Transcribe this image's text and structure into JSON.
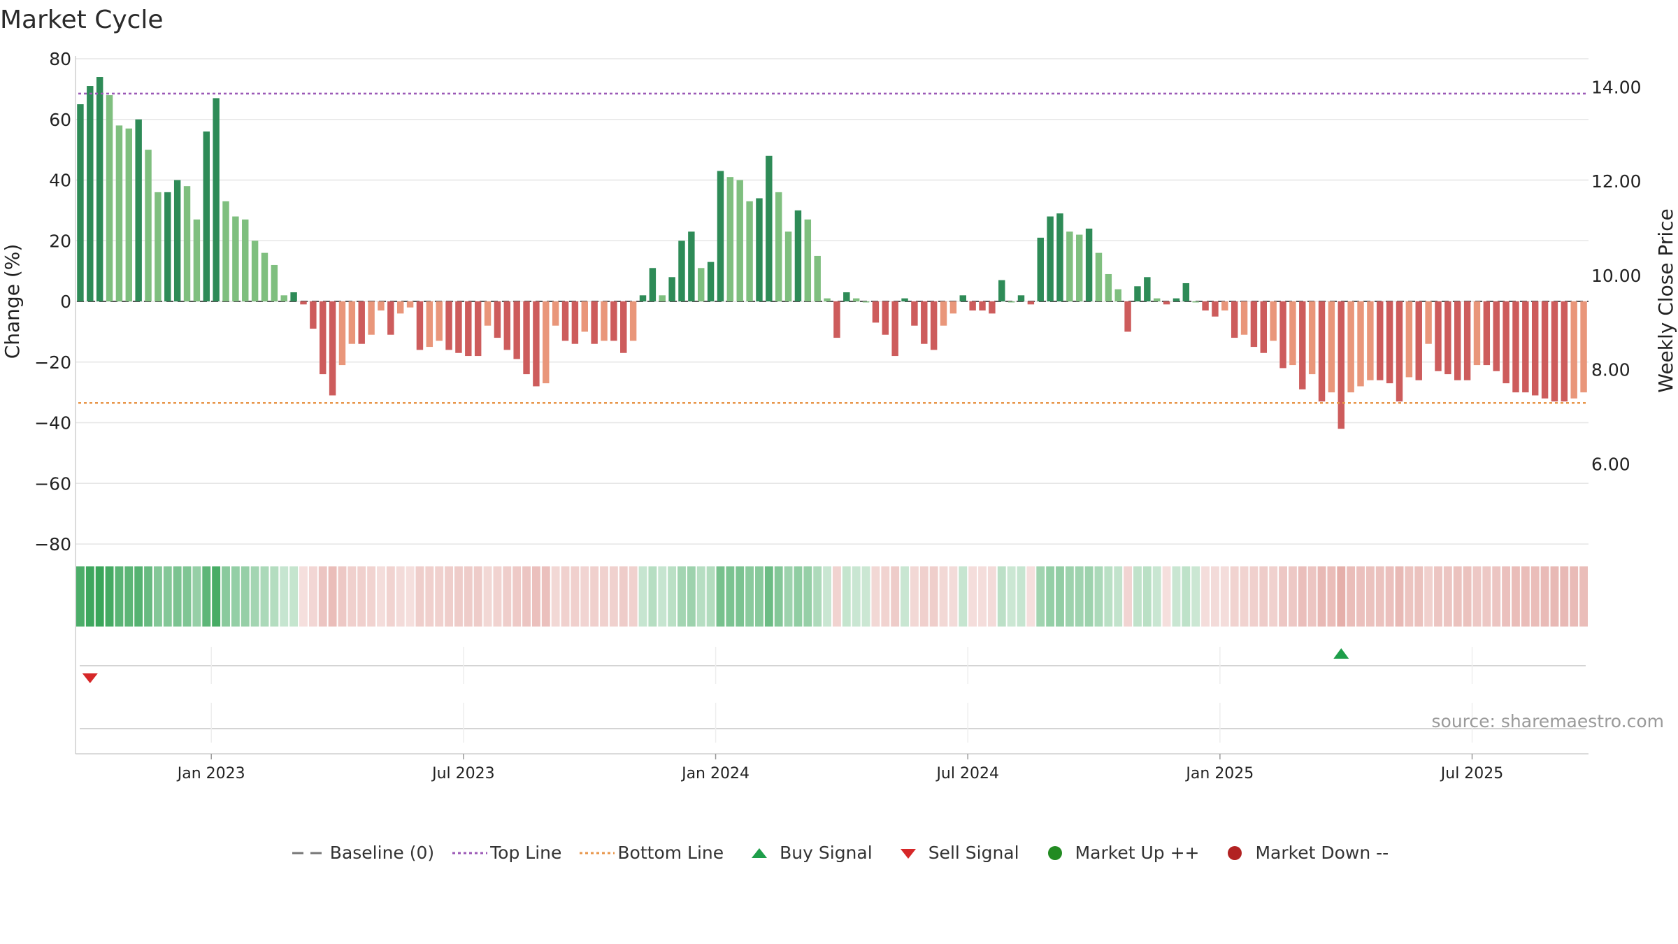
{
  "title": "Market Cycle",
  "source_text": "source: sharemaestro.com",
  "legend": [
    {
      "label": "Baseline (0)",
      "icon": "dash-line",
      "color": "#777777"
    },
    {
      "label": "Top Line",
      "icon": "dotted-line",
      "color": "#9b59b6"
    },
    {
      "label": "Bottom Line",
      "icon": "dotted-line",
      "color": "#e8964a"
    },
    {
      "label": "Buy Signal",
      "icon": "triangle-up",
      "color": "#1e9e4a"
    },
    {
      "label": "Sell Signal",
      "icon": "triangle-down",
      "color": "#d62728"
    },
    {
      "label": "Market Up ++",
      "icon": "circle",
      "color": "#228b22"
    },
    {
      "label": "Market Down --",
      "icon": "circle",
      "color": "#b22222"
    }
  ],
  "colors": {
    "up_strong": "#2e8b57",
    "up_weak": "#7fbf7f",
    "down_strong": "#cd5c5c",
    "down_weak": "#e9967a",
    "grid": "#e6e6e6",
    "top_line": "#9b59b6",
    "bottom_line": "#e8964a"
  },
  "chart_data": {
    "type": "bar",
    "ylabel": "Change (%)",
    "y2label": "Weekly Close Price",
    "ylim": [
      -80,
      80
    ],
    "yticks": [
      "80",
      "60",
      "40",
      "20",
      "0",
      "−20",
      "−40",
      "−60",
      "−80"
    ],
    "y2ticks": [
      "14.00",
      "12.00",
      "10.00",
      "8.00",
      "6.00"
    ],
    "y2lim": [
      4.3,
      14.6
    ],
    "top_line": 68.5,
    "bottom_line": -33.5,
    "x_tick_labels": [
      "Jan 2023",
      "Jul 2023",
      "Jan 2024",
      "Jul 2024",
      "Jan 2025",
      "Jul 2025"
    ],
    "x_tick_weeks": [
      14,
      40,
      66,
      92,
      118,
      144
    ],
    "values": [
      65,
      71,
      74,
      68,
      58,
      57,
      60,
      50,
      36,
      36,
      40,
      38,
      27,
      56,
      67,
      33,
      28,
      27,
      20,
      16,
      12,
      2,
      3,
      -1,
      -9,
      -24,
      -31,
      -21,
      -14,
      -14,
      -11,
      -3,
      -11,
      -4,
      -2,
      -16,
      -15,
      -13,
      -16,
      -17,
      -18,
      -18,
      -8,
      -12,
      -16,
      -19,
      -24,
      -28,
      -27,
      -8,
      -13,
      -14,
      -10,
      -14,
      -13,
      -13,
      -17,
      -13,
      2,
      11,
      2,
      8,
      20,
      23,
      11,
      13,
      43,
      41,
      40,
      33,
      34,
      48,
      36,
      23,
      30,
      27,
      15,
      1,
      -12,
      3,
      1,
      0,
      -7,
      -11,
      -18,
      1,
      -8,
      -14,
      -16,
      -8,
      -4,
      2,
      -3,
      -3,
      -4,
      7,
      0,
      2,
      -1,
      21,
      28,
      29,
      23,
      22,
      24,
      16,
      9,
      4,
      -10,
      5,
      8,
      1,
      -1,
      1,
      6,
      0,
      -3,
      -5,
      -3,
      -12,
      -11,
      -15,
      -17,
      -13,
      -22,
      -21,
      -29,
      -24,
      -33,
      -30,
      -42,
      -30,
      -28,
      -26,
      -26,
      -27,
      -33,
      -25,
      -26,
      -14,
      -23,
      -24,
      -26,
      -26,
      -21,
      -21,
      -23,
      -27,
      -30,
      -30,
      -31,
      -32,
      -33,
      -33,
      -32,
      -30
    ],
    "buy_signals": [
      130
    ],
    "sell_signals": [
      1
    ]
  }
}
